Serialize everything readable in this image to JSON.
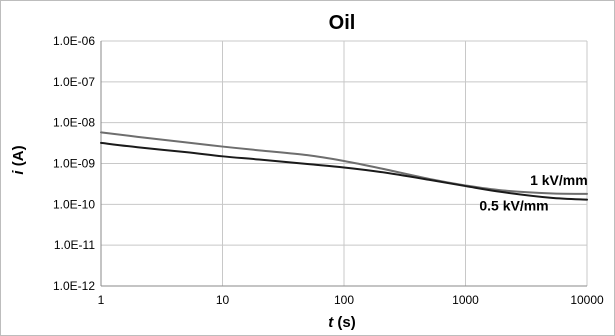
{
  "chart_data": {
    "type": "line",
    "title": "Oil",
    "xlabel": {
      "var": "t",
      "unit": " (s)"
    },
    "ylabel": {
      "var": "i",
      "unit": " (A)"
    },
    "x_scale": "log",
    "y_scale": "log",
    "xlim": [
      1,
      10000
    ],
    "ylim": [
      1e-12,
      1e-06
    ],
    "grid": true,
    "legend": "none",
    "x_ticks": [
      {
        "value": 1,
        "label": "1"
      },
      {
        "value": 10,
        "label": "10"
      },
      {
        "value": 100,
        "label": "100"
      },
      {
        "value": 1000,
        "label": "1000"
      },
      {
        "value": 10000,
        "label": "10000"
      }
    ],
    "y_ticks": [
      {
        "value": 1e-06,
        "label": "1.0E-06"
      },
      {
        "value": 1e-07,
        "label": "1.0E-07"
      },
      {
        "value": 1e-08,
        "label": "1.0E-08"
      },
      {
        "value": 1e-09,
        "label": "1.0E-09"
      },
      {
        "value": 1e-10,
        "label": "1.0E-10"
      },
      {
        "value": 1e-11,
        "label": "1.0E-11"
      },
      {
        "value": 1e-12,
        "label": "1.0E-12"
      }
    ],
    "series": [
      {
        "name": "1 kV/mm",
        "color": "#6e6e6e",
        "label_anchor": {
          "x": 3400,
          "y": 3e-10
        },
        "x": [
          1,
          2,
          5,
          10,
          20,
          50,
          100,
          200,
          500,
          1000,
          2000,
          5000,
          10000
        ],
        "y": [
          5.8e-09,
          4.5e-09,
          3.3e-09,
          2.6e-09,
          2.1e-09,
          1.6e-09,
          1.15e-09,
          7.6e-10,
          4.2e-10,
          2.9e-10,
          2.2e-10,
          1.85e-10,
          1.8e-10
        ]
      },
      {
        "name": "0.5 kV/mm",
        "color": "#1a1a1a",
        "label_anchor": {
          "x": 1300,
          "y": 7e-11
        },
        "x": [
          1,
          2,
          5,
          10,
          20,
          50,
          100,
          200,
          500,
          1000,
          2000,
          5000,
          10000
        ],
        "y": [
          3.2e-09,
          2.5e-09,
          1.9e-09,
          1.5e-09,
          1.25e-09,
          9.7e-10,
          8e-10,
          6.2e-10,
          4e-10,
          2.8e-10,
          2e-10,
          1.45e-10,
          1.3e-10
        ]
      }
    ]
  }
}
